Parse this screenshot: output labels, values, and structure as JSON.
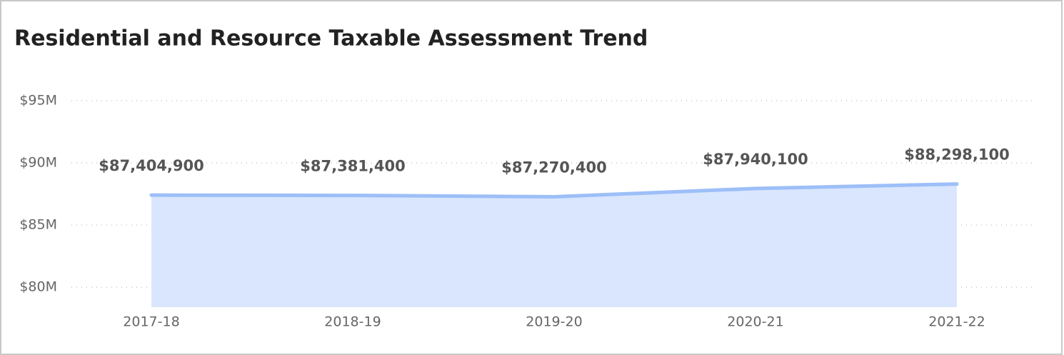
{
  "chart_data": {
    "type": "area",
    "title": "Residential and Resource Taxable Assessment Trend",
    "categories": [
      "2017-18",
      "2018-19",
      "2019-20",
      "2020-21",
      "2021-22"
    ],
    "values": [
      87404900,
      87381400,
      87270400,
      87940100,
      88298100
    ],
    "value_labels": [
      "$87,404,900",
      "$87,381,400",
      "$87,270,400",
      "$87,940,100",
      "$88,298,100"
    ],
    "color": "#9dbff8",
    "fill_color": "#d9e6fd",
    "ylim": [
      78400000,
      96200000
    ],
    "yticks": [
      {
        "value": 80000000,
        "label": "$80M"
      },
      {
        "value": 85000000,
        "label": "$85M"
      },
      {
        "value": 90000000,
        "label": "$90M"
      },
      {
        "value": 95000000,
        "label": "$95M"
      }
    ],
    "grid": true
  }
}
